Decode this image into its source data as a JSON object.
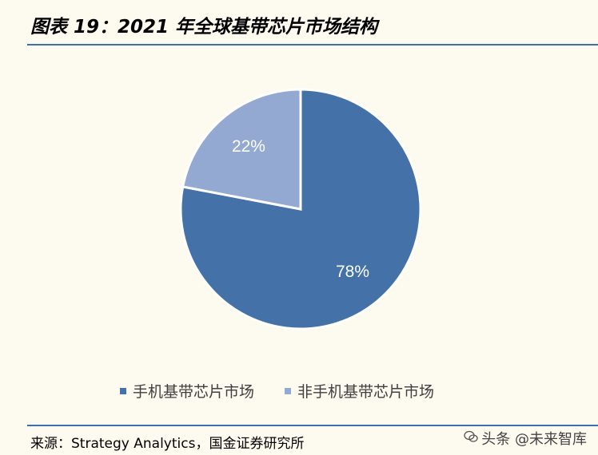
{
  "title": "图表 19：2021 年全球基带芯片市场结构",
  "source": "来源：Strategy Analytics，国金证券研究所",
  "watermark": "头条 @未来智库",
  "colors": {
    "series_primary": "#4472a8",
    "series_secondary": "#93a9d2",
    "rule": "#3f6fae",
    "background": "#fdfaf0"
  },
  "chart_data": {
    "type": "pie",
    "title": "2021 年全球基带芯片市场结构",
    "categories": [
      "手机基带芯片市场",
      "非手机基带芯片市场"
    ],
    "values": [
      78,
      22
    ],
    "labels": [
      "78%",
      "22%"
    ],
    "unit": "%",
    "legend_position": "bottom",
    "start_angle": "12 o'clock, clockwise"
  }
}
